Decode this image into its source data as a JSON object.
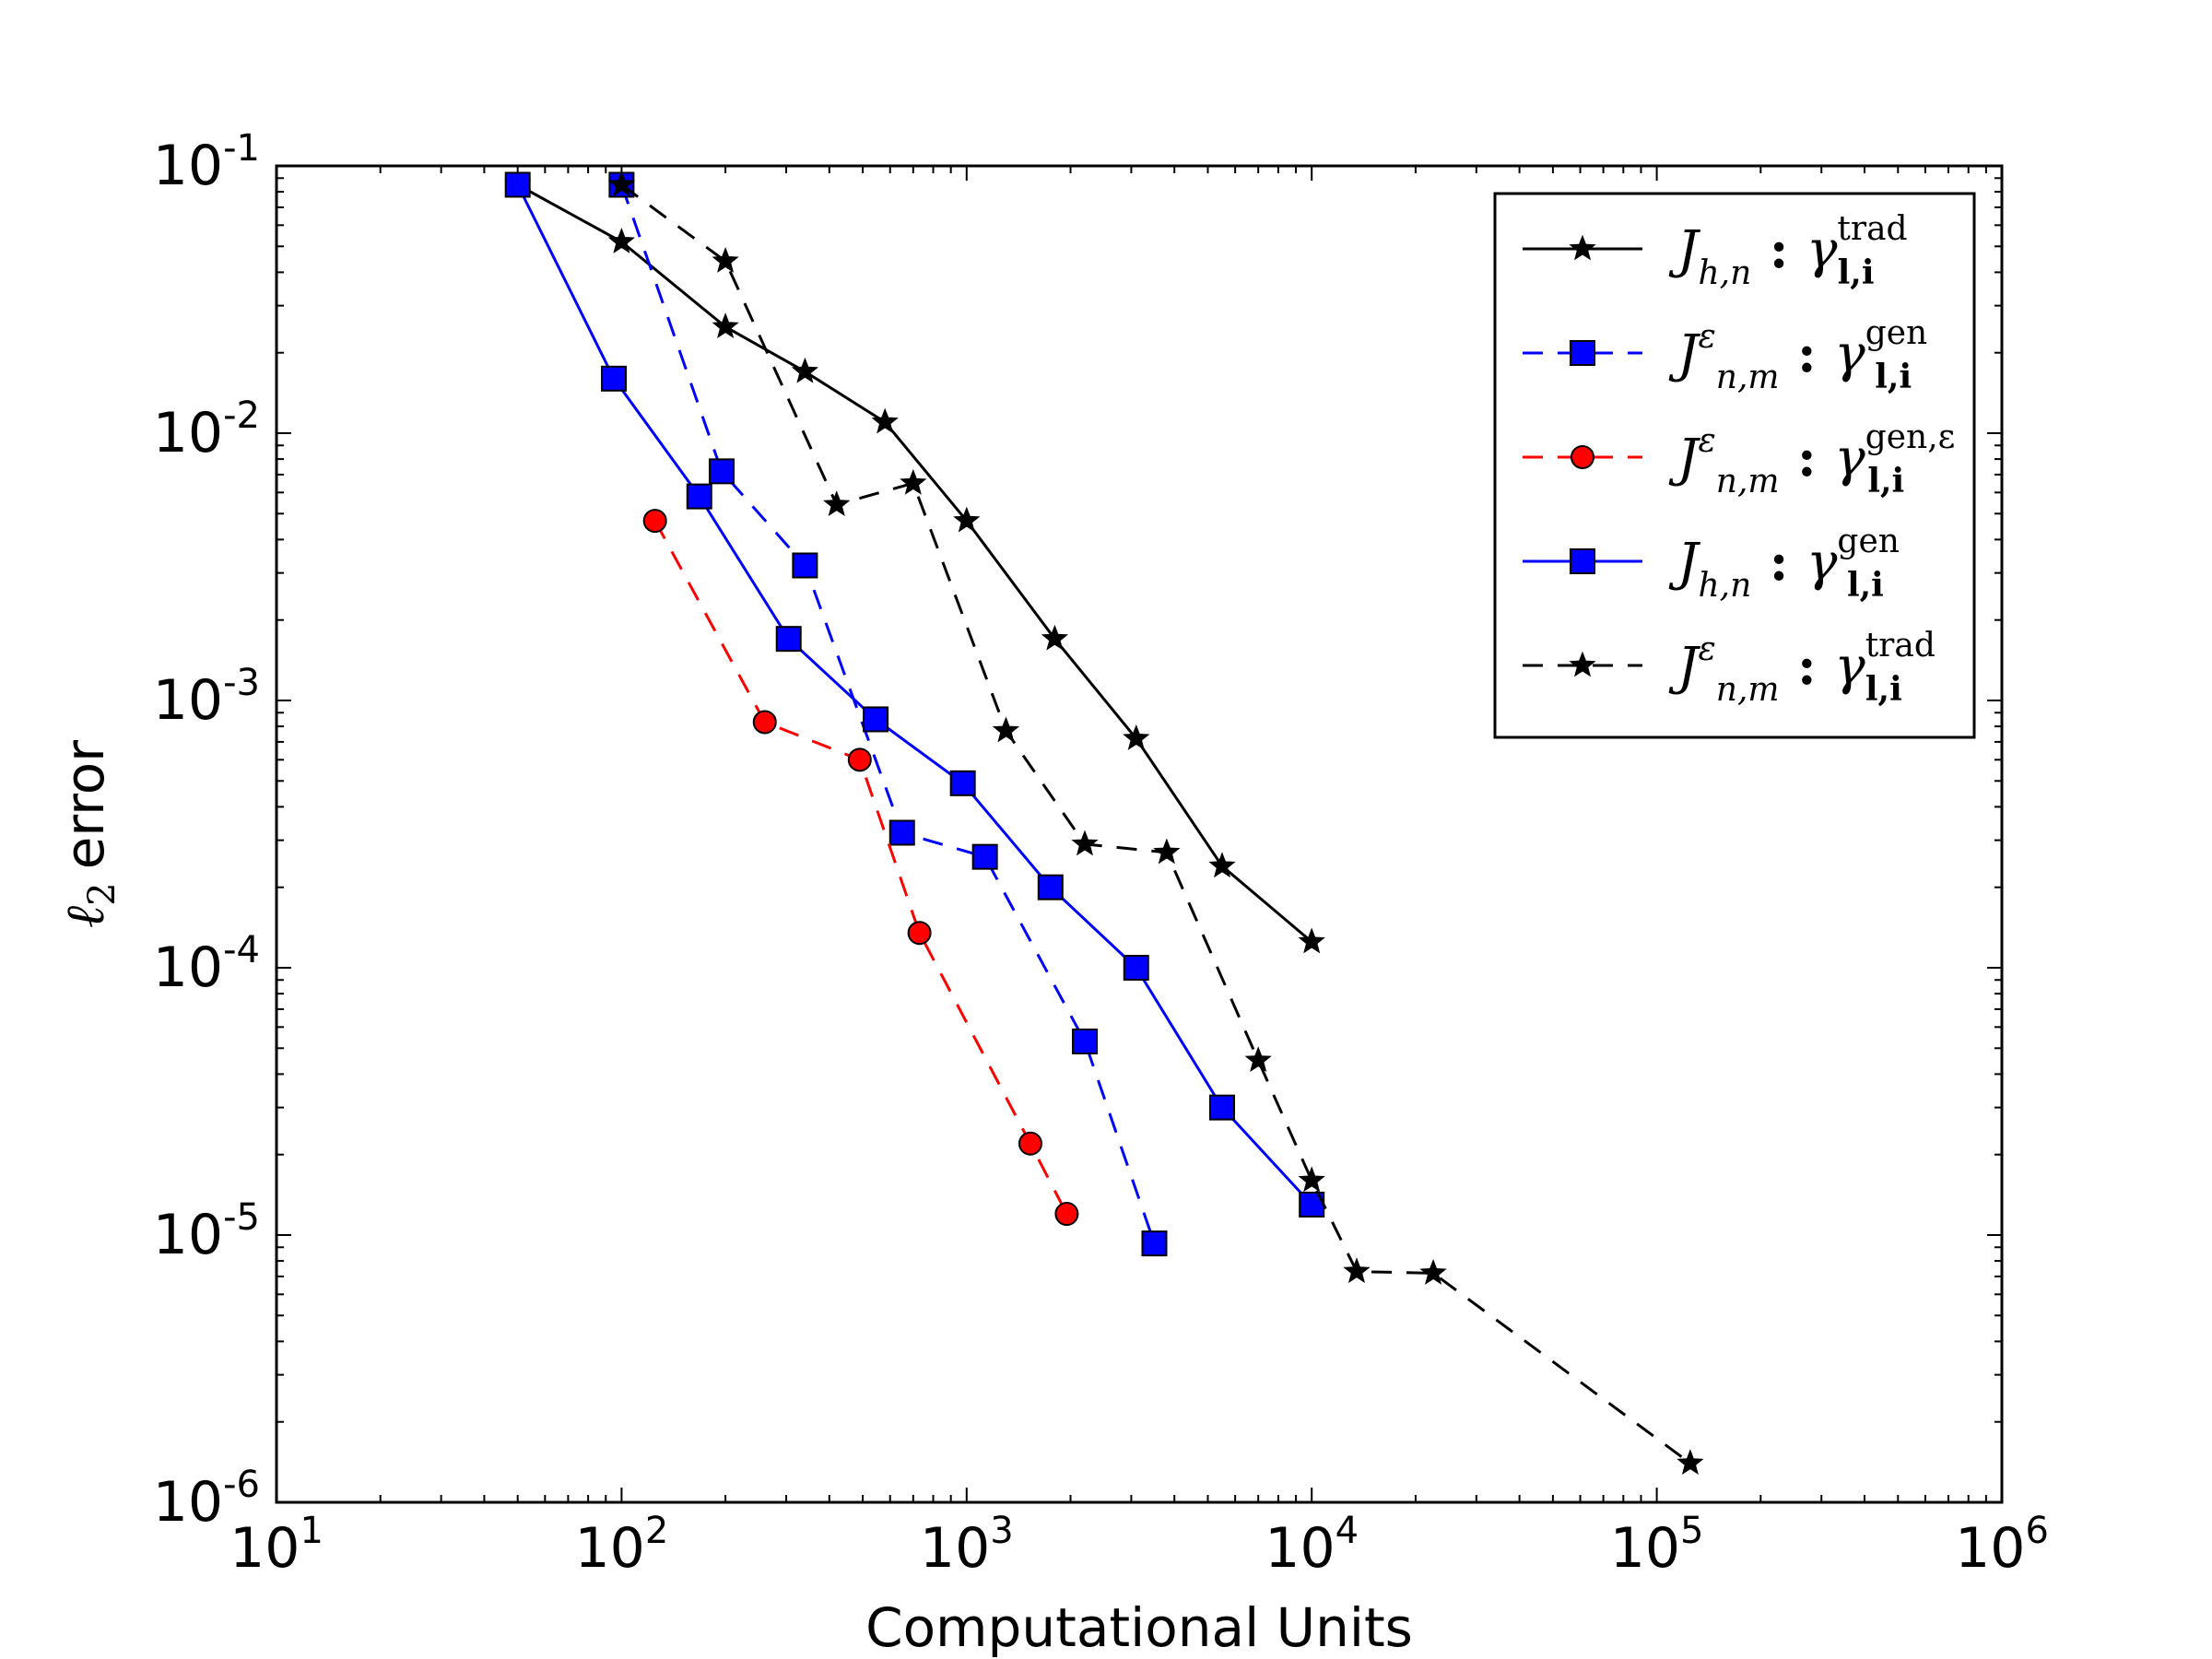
{
  "chart_data": {
    "type": "line",
    "title": "",
    "xlabel": "Computational Units",
    "ylabel": "error",
    "ylabel_symbol": "ℓ",
    "ylabel_subscript": "2",
    "xscale": "log",
    "yscale": "log",
    "xlim": [
      10,
      1000000
    ],
    "ylim": [
      1e-06,
      0.1
    ],
    "x_ticks": [
      {
        "base": "10",
        "exp": "1",
        "value": 10
      },
      {
        "base": "10",
        "exp": "2",
        "value": 100
      },
      {
        "base": "10",
        "exp": "3",
        "value": 1000
      },
      {
        "base": "10",
        "exp": "4",
        "value": 10000
      },
      {
        "base": "10",
        "exp": "5",
        "value": 100000
      },
      {
        "base": "10",
        "exp": "6",
        "value": 1000000
      }
    ],
    "y_ticks": [
      {
        "base": "10",
        "exp": "-1",
        "value": 0.1
      },
      {
        "base": "10",
        "exp": "-2",
        "value": 0.01
      },
      {
        "base": "10",
        "exp": "-3",
        "value": 0.001
      },
      {
        "base": "10",
        "exp": "-4",
        "value": 0.0001
      },
      {
        "base": "10",
        "exp": "-5",
        "value": 1e-05
      },
      {
        "base": "10",
        "exp": "-6",
        "value": 1e-06
      }
    ],
    "legend_position": "top-right",
    "series": [
      {
        "id": "jhn-trad",
        "name": "J_{h,n} : γ_{l,i}^{trad}",
        "legend": {
          "J": "J",
          "sup": "",
          "sub": "h,n",
          "gamma": "γ",
          "gsub": "l,i",
          "gsup": "trad"
        },
        "color": "#000000",
        "dash": "solid",
        "marker": "star",
        "x": [
          50,
          100,
          200,
          340,
          580,
          1000,
          1800,
          3100,
          5500,
          10000
        ],
        "y": [
          0.085,
          0.052,
          0.025,
          0.017,
          0.011,
          0.0047,
          0.0017,
          0.00072,
          0.00024,
          0.000125
        ]
      },
      {
        "id": "jnm-gen",
        "name": "J^ε_{n,m} : γ_{l,i}^{gen}",
        "legend": {
          "J": "J",
          "sup": "ε",
          "sub": "n,m",
          "gamma": "γ",
          "gsub": "l,i",
          "gsup": "gen"
        },
        "color": "#0000ff",
        "dash": "dashed",
        "marker": "square",
        "x": [
          100,
          195,
          340,
          650,
          1130,
          2200,
          3500
        ],
        "y": [
          0.085,
          0.0072,
          0.0032,
          0.00032,
          0.00026,
          5.3e-05,
          9.3e-06
        ]
      },
      {
        "id": "jnm-gen-eps",
        "name": "J^ε_{n,m} : γ_{l,i}^{gen,ε}",
        "legend": {
          "J": "J",
          "sup": "ε",
          "sub": "n,m",
          "gamma": "γ",
          "gsub": "l,i",
          "gsup": "gen,ε"
        },
        "color": "#ff0000",
        "dash": "dashed",
        "marker": "circle",
        "x": [
          125,
          260,
          490,
          730,
          1530,
          1950
        ],
        "y": [
          0.0047,
          0.00083,
          0.0006,
          0.000135,
          2.2e-05,
          1.2e-05
        ]
      },
      {
        "id": "jhn-gen",
        "name": "J_{h,n} : γ_{l,i}^{gen}",
        "legend": {
          "J": "J",
          "sup": "",
          "sub": "h,n",
          "gamma": "γ",
          "gsub": "l,i",
          "gsup": "gen"
        },
        "color": "#0000ff",
        "dash": "solid",
        "marker": "square",
        "x": [
          50,
          95,
          168,
          305,
          545,
          975,
          1750,
          3100,
          5500,
          10000
        ],
        "y": [
          0.085,
          0.016,
          0.0058,
          0.0017,
          0.00085,
          0.00049,
          0.0002,
          0.0001,
          3e-05,
          1.3e-05
        ]
      },
      {
        "id": "jnm-trad",
        "name": "J^ε_{n,m} : γ_{l,i}^{trad}",
        "legend": {
          "J": "J",
          "sup": "ε",
          "sub": "n,m",
          "gamma": "γ",
          "gsub": "l,i",
          "gsup": "trad"
        },
        "color": "#000000",
        "dash": "dashed",
        "marker": "star",
        "x": [
          100,
          200,
          420,
          700,
          1300,
          2200,
          3800,
          7000,
          10000,
          13500,
          22500,
          125000
        ],
        "y": [
          0.085,
          0.044,
          0.0054,
          0.0065,
          0.00077,
          0.00029,
          0.00027,
          4.5e-05,
          1.6e-05,
          7.3e-06,
          7.2e-06,
          1.4e-06
        ]
      }
    ]
  }
}
